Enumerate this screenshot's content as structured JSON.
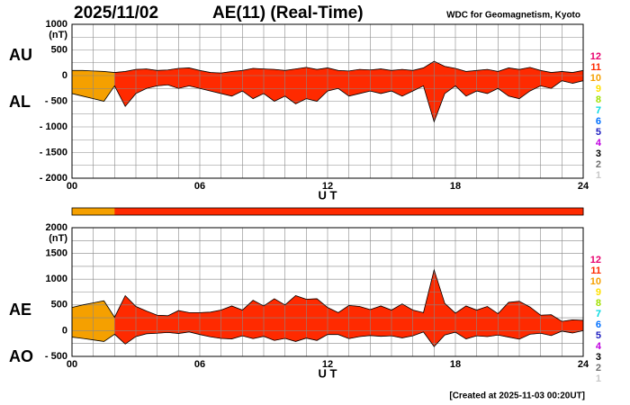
{
  "chart_data": [
    {
      "type": "band",
      "date": "2025/11/02",
      "title": "AE(11) (Real-Time)",
      "source": "WDC for Geomagnetism, Kyoto",
      "unit": "(nT)",
      "xlabel": "U T",
      "x": [
        0,
        0.5,
        1,
        1.5,
        2,
        2.5,
        3,
        3.5,
        4,
        4.5,
        5,
        5.5,
        6,
        6.5,
        7,
        7.5,
        8,
        8.5,
        9,
        9.5,
        10,
        10.5,
        11,
        11.5,
        12,
        12.5,
        13,
        13.5,
        14,
        14.5,
        15,
        15.5,
        16,
        16.5,
        17,
        17.5,
        18,
        18.5,
        19,
        19.5,
        20,
        20.5,
        21,
        21.5,
        22,
        22.5,
        23,
        23.5,
        24
      ],
      "colors": [
        "#f5a000",
        "#f5a000",
        "#f5a000",
        "#f5a000",
        "#ff2a00",
        "#ff2a00",
        "#ff2a00",
        "#ff2a00",
        "#ff2a00",
        "#ff2a00",
        "#ff2a00",
        "#ff2a00",
        "#ff2a00",
        "#ff2a00",
        "#ff2a00",
        "#ff2a00",
        "#ff2a00",
        "#ff2a00",
        "#ff2a00",
        "#ff2a00",
        "#ff2a00",
        "#ff2a00",
        "#ff2a00",
        "#ff2a00",
        "#ff2a00",
        "#ff2a00",
        "#ff2a00",
        "#ff2a00",
        "#ff2a00",
        "#ff2a00",
        "#ff2a00",
        "#ff2a00",
        "#ff2a00",
        "#ff2a00",
        "#ff2a00",
        "#ff2a00",
        "#ff2a00",
        "#ff2a00",
        "#ff2a00",
        "#ff2a00",
        "#ff2a00",
        "#ff2a00",
        "#ff2a00",
        "#ff2a00",
        "#ff2a00",
        "#ff2a00",
        "#ff2a00",
        "#ff2a00",
        "#ffd000"
      ],
      "series": [
        {
          "name": "AU",
          "values": [
            100,
            100,
            90,
            80,
            60,
            80,
            120,
            130,
            100,
            110,
            140,
            150,
            100,
            60,
            50,
            80,
            100,
            140,
            130,
            120,
            100,
            130,
            160,
            120,
            150,
            100,
            90,
            120,
            110,
            130,
            100,
            120,
            100,
            150,
            280,
            180,
            140,
            80,
            100,
            120,
            80,
            150,
            120,
            160,
            100,
            60,
            80,
            60,
            100
          ]
        },
        {
          "name": "AL",
          "values": [
            -350,
            -400,
            -450,
            -500,
            -200,
            -600,
            -350,
            -250,
            -200,
            -180,
            -250,
            -200,
            -250,
            -300,
            -350,
            -400,
            -300,
            -450,
            -350,
            -500,
            -400,
            -550,
            -450,
            -500,
            -300,
            -250,
            -400,
            -350,
            -300,
            -350,
            -300,
            -400,
            -300,
            -200,
            -900,
            -350,
            -200,
            -400,
            -300,
            -350,
            -250,
            -400,
            -450,
            -300,
            -200,
            -250,
            -100,
            -150,
            -100
          ]
        }
      ],
      "xlim": [
        0,
        24
      ],
      "ylim": [
        -2000,
        1000
      ],
      "xticks": [
        {
          "value": 0,
          "label": "00"
        },
        {
          "value": 6,
          "label": "06"
        },
        12,
        18,
        24
      ],
      "yticks": [
        1000,
        500,
        0,
        {
          "value": -500,
          "label": "- 500"
        },
        {
          "value": -1000,
          "label": "- 1000"
        },
        {
          "value": -1500,
          "label": "- 1500"
        },
        {
          "value": -2000,
          "label": "- 2000"
        }
      ],
      "x_gridlines": [
        1,
        2,
        3,
        4,
        5,
        7,
        8,
        9,
        10,
        11,
        13,
        14,
        15,
        16,
        17,
        19,
        20,
        21,
        22,
        23
      ],
      "y_gridlines": [
        750,
        250,
        -250,
        -750,
        -1250,
        -1750
      ],
      "scale": [
        {
          "value": 12,
          "color": "#e8006e"
        },
        {
          "value": 11,
          "color": "#ff2a00"
        },
        {
          "value": 10,
          "color": "#f5a000"
        },
        {
          "value": 9,
          "color": "#ffe000"
        },
        {
          "value": 8,
          "color": "#a0e000"
        },
        {
          "value": 7,
          "color": "#00d8e0"
        },
        {
          "value": 6,
          "color": "#0070ff"
        },
        {
          "value": 5,
          "color": "#2020c0"
        },
        {
          "value": 4,
          "color": "#c000e0"
        },
        {
          "value": 3,
          "color": "#000000"
        },
        {
          "value": 2,
          "color": "#707070"
        },
        {
          "value": 1,
          "color": "#c8c8c8"
        }
      ]
    },
    {
      "type": "band",
      "unit": "(nT)",
      "xlabel": "U T",
      "note": "[Created at 2025-11-03 00:20UT]",
      "x": [
        0,
        0.5,
        1,
        1.5,
        2,
        2.5,
        3,
        3.5,
        4,
        4.5,
        5,
        5.5,
        6,
        6.5,
        7,
        7.5,
        8,
        8.5,
        9,
        9.5,
        10,
        10.5,
        11,
        11.5,
        12,
        12.5,
        13,
        13.5,
        14,
        14.5,
        15,
        15.5,
        16,
        16.5,
        17,
        17.5,
        18,
        18.5,
        19,
        19.5,
        20,
        20.5,
        21,
        21.5,
        22,
        22.5,
        23,
        23.5,
        24
      ],
      "colors": [
        "#f5a000",
        "#f5a000",
        "#f5a000",
        "#f5a000",
        "#ff2a00",
        "#ff2a00",
        "#ff2a00",
        "#ff2a00",
        "#ff2a00",
        "#ff2a00",
        "#ff2a00",
        "#ff2a00",
        "#ff2a00",
        "#ff2a00",
        "#ff2a00",
        "#ff2a00",
        "#ff2a00",
        "#ff2a00",
        "#ff2a00",
        "#ff2a00",
        "#ff2a00",
        "#ff2a00",
        "#ff2a00",
        "#ff2a00",
        "#ff2a00",
        "#ff2a00",
        "#ff2a00",
        "#ff2a00",
        "#ff2a00",
        "#ff2a00",
        "#ff2a00",
        "#ff2a00",
        "#ff2a00",
        "#ff2a00",
        "#ff2a00",
        "#ff2a00",
        "#ff2a00",
        "#ff2a00",
        "#ff2a00",
        "#ff2a00",
        "#ff2a00",
        "#ff2a00",
        "#ff2a00",
        "#ff2a00",
        "#ff2a00",
        "#ff2a00",
        "#ff2a00",
        "#ff2a00",
        "#ffd000"
      ],
      "series": [
        {
          "name": "AE",
          "values": [
            450,
            500,
            540,
            580,
            260,
            680,
            470,
            380,
            300,
            290,
            390,
            350,
            350,
            360,
            400,
            480,
            400,
            590,
            480,
            620,
            500,
            680,
            610,
            620,
            450,
            350,
            490,
            470,
            410,
            480,
            400,
            520,
            400,
            350,
            1180,
            530,
            340,
            480,
            400,
            470,
            330,
            550,
            570,
            460,
            300,
            310,
            180,
            210,
            200
          ]
        },
        {
          "name": "AO",
          "values": [
            -125,
            -150,
            -180,
            -210,
            -70,
            -260,
            -115,
            -60,
            -50,
            -35,
            -55,
            -25,
            -75,
            -120,
            -150,
            -160,
            -100,
            -155,
            -110,
            -190,
            -150,
            -210,
            -145,
            -190,
            -75,
            -75,
            -155,
            -115,
            -95,
            -110,
            -100,
            -140,
            -100,
            -25,
            -310,
            -85,
            -30,
            -160,
            -100,
            -115,
            -85,
            -125,
            -165,
            -70,
            -50,
            -95,
            -10,
            -45,
            0
          ]
        }
      ],
      "xlim": [
        0,
        24
      ],
      "ylim": [
        -500,
        2000
      ],
      "xticks": [
        {
          "value": 0,
          "label": "00"
        },
        {
          "value": 6,
          "label": "06"
        },
        12,
        18,
        24
      ],
      "yticks": [
        2000,
        1500,
        1000,
        500,
        0,
        {
          "value": -500,
          "label": "- 500"
        }
      ],
      "x_gridlines": [
        1,
        2,
        3,
        4,
        5,
        7,
        8,
        9,
        10,
        11,
        13,
        14,
        15,
        16,
        17,
        19,
        20,
        21,
        22,
        23
      ],
      "y_gridlines": [
        1750,
        1250,
        750,
        250,
        -250
      ],
      "scale": [
        {
          "value": 12,
          "color": "#e8006e"
        },
        {
          "value": 11,
          "color": "#ff2a00"
        },
        {
          "value": 10,
          "color": "#f5a000"
        },
        {
          "value": 9,
          "color": "#ffe000"
        },
        {
          "value": 8,
          "color": "#a0e000"
        },
        {
          "value": 7,
          "color": "#00d8e0"
        },
        {
          "value": 6,
          "color": "#0070ff"
        },
        {
          "value": 5,
          "color": "#2020c0"
        },
        {
          "value": 4,
          "color": "#c000e0"
        },
        {
          "value": 3,
          "color": "#000000"
        },
        {
          "value": 2,
          "color": "#707070"
        },
        {
          "value": 1,
          "color": "#c8c8c8"
        }
      ]
    }
  ]
}
